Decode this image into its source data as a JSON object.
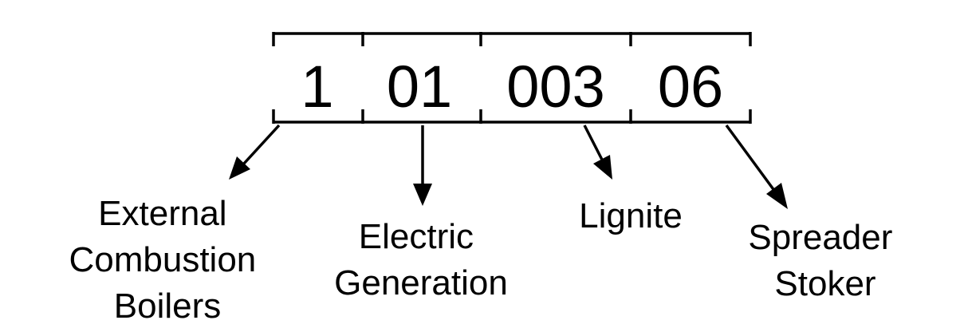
{
  "segments": [
    {
      "code": "1",
      "label_lines": [
        "External",
        "Combustion",
        "Boilers"
      ]
    },
    {
      "code": "01",
      "label_lines": [
        "Electric",
        "Generation"
      ]
    },
    {
      "code": "003",
      "label_lines": [
        "Lignite"
      ]
    },
    {
      "code": "06",
      "label_lines": [
        "Spreader",
        "Stoker"
      ]
    }
  ],
  "colors": {
    "stroke": "#000000",
    "background": "#ffffff"
  }
}
